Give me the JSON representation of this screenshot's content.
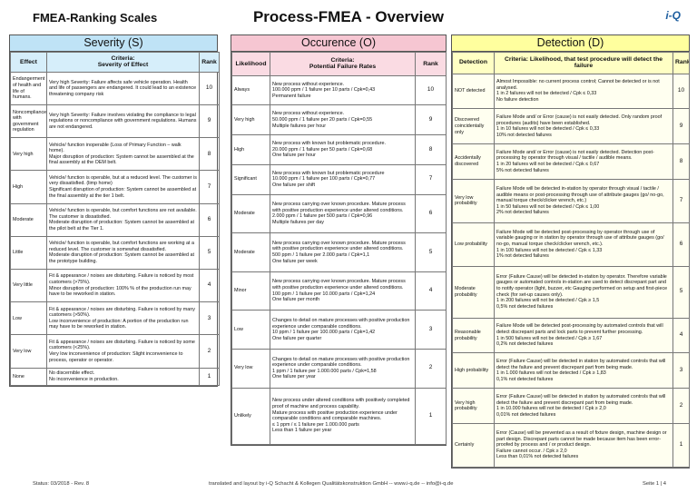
{
  "header": {
    "left_title": "FMEA-Ranking Scales",
    "title": "Process-FMEA - Overview",
    "logo": "i-Q"
  },
  "severity": {
    "title": "Severity (S)",
    "columns": [
      "Effect",
      "Criteria:\nSeverity of Effect",
      "Rank"
    ],
    "rows": [
      [
        "Endangerment of health and life of humans.",
        "Very high Severity: Failure affects safe vehicle operation. Health and life of passengers are endangered. It could lead to an existence threatening company risk",
        10
      ],
      [
        "Noncompliance with government regulation",
        "Very high Severity: Failure involves violating the compliance to legal regulations or noncompliance with government regulations. Humans are not endangered.",
        9
      ],
      [
        "Very high",
        "Vehicle/ function inoperable (Loss of Primary Function – walk home).\nMajor disruption of production: System cannot be assembled at the final assembly at the OEM belt.",
        8
      ],
      [
        "High",
        "Vehicle/ function is operable, but at a reduced level. The customer is very dissatisfied. (limp home)\nSignificant disruption of production: System cannot be assembled at the final assembly at the tier 1 belt.",
        7
      ],
      [
        "Moderate",
        "Vehicle/ function is operable, but comfort functions are not available. The customer is dissatisfied.\nModerate disruption of production: System cannot be assembled at the pilot belt at the Tier 1.",
        6
      ],
      [
        "Little",
        "Vehicle/ function is operable, but comfort functions are working at a reduced level. The customer is somewhat dissatisfied.\nModerate disruption of production: System cannot be assembled at the prototype building.",
        5
      ],
      [
        "Very little",
        "Fit & appearance / noises are disturbing. Failure is noticed by most customers (>75%).\nMinor disruption of production: 100% % of the production run may have to be reworked in station.",
        4
      ],
      [
        "Low",
        "Fit & appearance / noises are disturbing. Failure is noticed by many customers (>50%).\nLow inconvenience of production: A portion of the production run may have to be reworked in station.",
        3
      ],
      [
        "Very low",
        "Fit & appearance / noises are disturbing. Failure is noticed by some customers (<25%).\nVery low inconvenience of production: Slight inconvenience to process, operator or operator.",
        2
      ],
      [
        "None",
        "No discernible effect.\nNo inconvenience in production.",
        1
      ]
    ]
  },
  "occurrence": {
    "title": "Occurence (O)",
    "columns": [
      "Likelihood",
      "Criteria:\nPotential Failure Rates",
      "Rank"
    ],
    "rows": [
      [
        "Always",
        "New process without experience.\n100.000 ppm / 1 failure per 10 parts / Cpk=0,43\nPermanent failure",
        10
      ],
      [
        "Very high",
        "New process without experience.\n50.000 ppm / 1 failure per 20 parts / Cpk=0,55\nMultiple failures per hour",
        9
      ],
      [
        "High",
        "New process with known but problematic procedure.\n20.000 ppm / 1 failure per 50 parts / Cpk=0,68\nOne failure per hour",
        8
      ],
      [
        "Significant",
        "New process with known but problematic procedure\n10.000 ppm / 1 failure per 100 parts / Cpk=0,77\nOne failure per shift",
        7
      ],
      [
        "Moderate",
        "New process carrying over known procedure. Mature process with positive production experience under altered conditions.\n2.000 ppm / 1 failure per 500 parts / Cpk=0,96\nMultiple failures per day",
        6
      ],
      [
        "Moderate",
        "New process carrying over known procedure. Mature process with positive production experience under altered conditions.\n500 ppm / 1 failure per 2.000 parts / Cpk=1,1\nOne failure per week",
        5
      ],
      [
        "Minor",
        "New process carrying over known procedure. Mature process with positive production experience under altered conditions.\n100 ppm / 1 failure per 10.000 parts / Cpk=1,24\nOne failure per month",
        4
      ],
      [
        "Low",
        "Changes to detail on mature processes with positive production experience under comparable conditions.\n10 ppm / 1 failure per 100.000 parts / Cpk=1,42\nOne failure per quarter",
        3
      ],
      [
        "Very low",
        "Changes to detail on mature processes with positive production experience under comparable conditions.\n1 ppm / 1 failure per 1.000.000 parts / Cpk=1,58\nOne failure per year",
        2
      ],
      [
        "Unlikely",
        "New process under altered conditions with positively completed proof of machine and process capability.\nMature process with positive production experience under comparable conditions and comparable machines.\n≤ 1 ppm / ≤ 1 failure per 1.000.000 parts\nLess than 1 failure per year",
        1
      ]
    ]
  },
  "detection": {
    "title": "Detection (D)",
    "columns": [
      "Detection",
      "Criteria: Likelihood, that test procedure will detect the failure",
      "Rank"
    ],
    "rows": [
      [
        "NOT detected",
        "Almost Impossible: no current process control; Cannot be detected or is not analysed.\n1 in 2 failures will not be detected / Cpk ≤ 0,33\nNo failure detection",
        10
      ],
      [
        "Discovered coincidentally only",
        "Failure Mode and/ or Error (cause) is not easily detected. Only random proof procedures (audits) have been established.\n1 in 10 failures will not be detected / Cpk ≤ 0,33\n10% not detected failures",
        9
      ],
      [
        "Accidentally discovered",
        "Failure Mode and/ or Error (cause) is not easily detected. Detection post-processing by operator through visual / tactile / audible means.\n1 in 20 failures will not be detected / Cpk ≤ 0,67\n5% not detected failures",
        8
      ],
      [
        "Very low probability",
        "Failure Mode will be detected in-station by operator through visual / tactile / audible means or post-processing through use of attribute gauges (go/ no-go, manual torque check/clicker wrench, etc.)\n1 in 50 failures will not be detected / Cpk ≤ 1,00\n2% not detected failures",
        7
      ],
      [
        "Low probability",
        "Failure Mode will be detected post-processing by operator through use of variable gauging or in station by operator through use of attribute gauges (go/ no-go, manual torque check/clicker wrench, etc.).\n1 in 100 failures will not be detected / Cpk ≤ 1,33\n1% not detected failures",
        6
      ],
      [
        "Moderate probability",
        "Error (Failure Cause) will be detected in-station by operator. Therefore variable gauges or automated controls in-station are used to detect discrepant part and to notify operator (light, buzzer, etc Gauging performed on setup and first-piece check (for set-up causes only).\n1 in 200 failures will not be detected / Cpk ≥ 1,5\n0,5% not detected failures",
        5
      ],
      [
        "Reasonable probability",
        "Failure Mode will be detected post-processing by automated controls that will detect discrepant parts and lock parts to prevent further processing.\n1 in 500 failures will not be detected / Cpk ≥ 1,67\n0,2% not detected failures",
        4
      ],
      [
        "High probability",
        "Error (Failure Cause) will be detected in station by automated controls that will detect the failure and prevent discrepant part from being made.\n1 in 1.000 failures will not be detected / Cpk ≥ 1,83\n0,1% not detected failures",
        3
      ],
      [
        "Very high probability",
        "Error (Failure Cause) will be detected in station by automated controls that will detect the failure and prevent discrepant part from being made.\n1 in 10.000 failures will not be detected / Cpk ≥ 2,0\n0,01% not detected failures",
        2
      ],
      [
        "Certainly",
        "Error (Cause) will be prevented as a result of fixture design, machine design or part design. Discrepant parts cannot be made because item has been error-proofed by process and / or product design.\nFailure cannot occur. / Cpk ≥ 2,0\nLess than 0,01% not detected failures",
        1
      ]
    ]
  },
  "footer": {
    "status": "Status: 03/2018 - Rev. 8",
    "credit": "translated and layout by i-Q Schacht & Kollegen Qualitätskonstruktion GmbH  --  www.i-q.de  --  info@i-q.de",
    "page": "Seite 1 | 4"
  }
}
